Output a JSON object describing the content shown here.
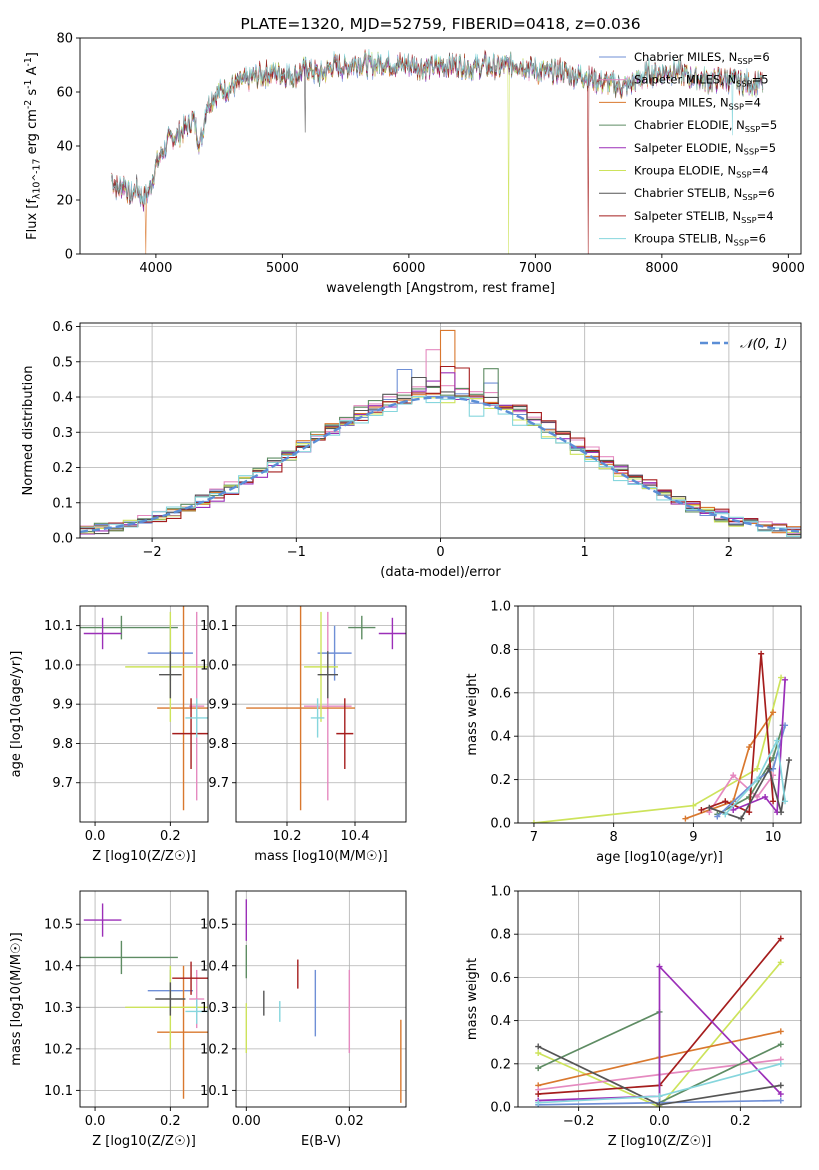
{
  "colors": {
    "Chabrier MILES": "#6f8fd6",
    "Salpeter MILES": "#e58ac0",
    "Kroupa MILES": "#d9782e",
    "Chabrier ELODIE": "#5e8c63",
    "Salpeter ELODIE": "#9b2fb8",
    "Kroupa ELODIE": "#cde35b",
    "Chabrier STELIB": "#555555",
    "Salpeter STELIB": "#a51d1d",
    "Kroupa STELIB": "#86d6dd",
    "normal": "#5b8ed6"
  },
  "chart_data": [
    {
      "id": "spectrum",
      "type": "line",
      "title": "PLATE=1320, MJD=52759, FIBERID=0418, z=0.036",
      "xlabel": "wavelength [Angstrom, rest frame]",
      "ylabel": "Flux [f_λ10^-17 erg cm^-2 s^-1 A^-1]",
      "xlim": [
        3400,
        9100
      ],
      "ylim": [
        0,
        80
      ],
      "xticks": [
        4000,
        5000,
        6000,
        7000,
        8000,
        9000
      ],
      "yticks": [
        0,
        20,
        40,
        60,
        80
      ],
      "legend_position": "top-right",
      "legend": [
        {
          "series": "Chabrier MILES",
          "label": "Chabrier MILES, N_SSP=6"
        },
        {
          "series": "Salpeter MILES",
          "label": "Salpeter MILES, N_SSP=5"
        },
        {
          "series": "Kroupa MILES",
          "label": "Kroupa MILES, N_SSP=4"
        },
        {
          "series": "Chabrier ELODIE",
          "label": "Chabrier ELODIE, N_SSP=5"
        },
        {
          "series": "Salpeter ELODIE",
          "label": "Salpeter ELODIE, N_SSP=5"
        },
        {
          "series": "Kroupa ELODIE",
          "label": "Kroupa ELODIE, N_SSP=4"
        },
        {
          "series": "Chabrier STELIB",
          "label": "Chabrier STELIB, N_SSP=6"
        },
        {
          "series": "Salpeter STELIB",
          "label": "Salpeter STELIB, N_SSP=4"
        },
        {
          "series": "Kroupa STELIB",
          "label": "Kroupa STELIB, N_SSP=6"
        }
      ],
      "continuum": {
        "x": [
          3650,
          3700,
          3750,
          3800,
          3850,
          3900,
          3950,
          4000,
          4100,
          4200,
          4300,
          4350,
          4400,
          4500,
          4600,
          4700,
          4800,
          4900,
          5000,
          5100,
          5200,
          5300,
          5400,
          5500,
          5600,
          5700,
          5800,
          5900,
          6000,
          6100,
          6200,
          6300,
          6400,
          6500,
          6600,
          6700,
          6800,
          6900,
          7000,
          7100,
          7200,
          7300,
          7400,
          7500,
          7600,
          7700,
          7800,
          7900,
          8000,
          8100,
          8200,
          8300,
          8400,
          8500,
          8600,
          8700,
          8800
        ],
        "y": [
          28,
          24,
          26,
          21,
          25,
          20,
          24,
          33,
          42,
          45,
          50,
          40,
          55,
          60,
          62,
          64,
          66,
          67,
          67,
          66,
          69,
          66,
          70,
          69,
          71,
          70,
          71,
          70,
          70,
          69,
          69,
          70,
          70,
          69,
          70,
          69,
          70,
          70,
          68,
          67,
          68,
          66,
          66,
          64,
          63,
          62,
          64,
          67,
          67,
          68,
          66,
          65,
          64,
          65,
          64,
          63,
          63
        ]
      },
      "dips": [
        {
          "series": "Kroupa MILES",
          "x": 3920,
          "y": 0
        },
        {
          "series": "Kroupa ELODIE",
          "x": 6790,
          "y": 0
        },
        {
          "series": "Salpeter STELIB",
          "x": 7420,
          "y": 0
        },
        {
          "series": "Chabrier STELIB",
          "x": 5180,
          "y": 45
        },
        {
          "series": "Kroupa STELIB",
          "x": 8560,
          "y": 44
        }
      ]
    },
    {
      "id": "residuals",
      "type": "histogram",
      "xlabel": "(data-model)/error",
      "ylabel": "Normed distribution",
      "xlim": [
        -2.5,
        2.5
      ],
      "ylim": [
        0,
        0.61
      ],
      "xticks": [
        -2,
        -1,
        0,
        1,
        2
      ],
      "yticks": [
        0.0,
        0.1,
        0.2,
        0.3,
        0.4,
        0.5,
        0.6
      ],
      "grid": true,
      "bin_width": 0.1,
      "legend_position": "top-right",
      "reference": {
        "label": "𝒩(0, 1)",
        "mu": 0,
        "sigma": 1
      },
      "series": [
        {
          "name": "Chabrier MILES",
          "offset": 0.0,
          "scale": 1.02,
          "peak_bumps": [
            [
              -0.25,
              0.08
            ],
            [
              0.35,
              0.05
            ]
          ]
        },
        {
          "name": "Salpeter MILES",
          "offset": 0.01,
          "scale": 1.06,
          "peak_bumps": [
            [
              -0.05,
              0.12
            ]
          ]
        },
        {
          "name": "Kroupa MILES",
          "offset": 0.02,
          "scale": 1.05,
          "peak_bumps": [
            [
              0.05,
              0.18
            ]
          ]
        },
        {
          "name": "Chabrier ELODIE",
          "offset": -0.01,
          "scale": 1.04,
          "peak_bumps": [
            [
              0.35,
              0.1
            ]
          ]
        },
        {
          "name": "Salpeter ELODIE",
          "offset": 0.03,
          "scale": 1.03,
          "peak_bumps": [
            [
              0.0,
              0.05
            ]
          ]
        },
        {
          "name": "Kroupa ELODIE",
          "offset": -0.02,
          "scale": 1.0,
          "peak_bumps": []
        },
        {
          "name": "Chabrier STELIB",
          "offset": 0.0,
          "scale": 1.05,
          "peak_bumps": [
            [
              -0.15,
              0.05
            ]
          ]
        },
        {
          "name": "Salpeter STELIB",
          "offset": 0.05,
          "scale": 1.04,
          "peak_bumps": [
            [
              0.1,
              0.06
            ]
          ]
        },
        {
          "name": "Kroupa STELIB",
          "offset": -0.03,
          "scale": 0.98,
          "peak_bumps": [
            [
              0.25,
              -0.04
            ]
          ]
        }
      ]
    },
    {
      "id": "age-vs-Z",
      "type": "scatter",
      "xlabel": "Z [log10(Z/Z☉)]",
      "ylabel": "age  [log10(age/yr)]",
      "xlim": [
        -0.04,
        0.3
      ],
      "ylim": [
        9.6,
        10.15
      ],
      "xticks": [
        0.0,
        0.2
      ],
      "yticks": [
        9.7,
        9.8,
        9.9,
        10.0,
        10.1
      ],
      "grid": true,
      "points": [
        {
          "series": "Chabrier MILES",
          "x": 0.2,
          "y": 10.03,
          "xerr": 0.06,
          "yerr": 0.07
        },
        {
          "series": "Salpeter MILES",
          "x": 0.27,
          "y": 9.895,
          "xerr": 0.02,
          "yerr": 0.24
        },
        {
          "series": "Kroupa MILES",
          "x": 0.235,
          "y": 9.89,
          "xerr": 0.07,
          "yerr": 0.26
        },
        {
          "series": "Chabrier ELODIE",
          "x": 0.07,
          "y": 10.095,
          "xerr": 0.15,
          "yerr": 0.03
        },
        {
          "series": "Salpeter ELODIE",
          "x": 0.02,
          "y": 10.08,
          "xerr": 0.05,
          "yerr": 0.04
        },
        {
          "series": "Kroupa ELODIE",
          "x": 0.2,
          "y": 9.995,
          "xerr": 0.12,
          "yerr": 0.14
        },
        {
          "series": "Chabrier STELIB",
          "x": 0.2,
          "y": 9.975,
          "xerr": 0.03,
          "yerr": 0.06
        },
        {
          "series": "Salpeter STELIB",
          "x": 0.255,
          "y": 9.825,
          "xerr": 0.05,
          "yerr": 0.09
        },
        {
          "series": "Kroupa STELIB",
          "x": 0.27,
          "y": 9.865,
          "xerr": 0.03,
          "yerr": 0.05
        }
      ]
    },
    {
      "id": "age-vs-mass",
      "type": "scatter",
      "xlabel": "mass [log10(M/M☉)]",
      "ylabel": "",
      "xlim": [
        10.05,
        10.55
      ],
      "ylim": [
        9.6,
        10.15
      ],
      "xticks": [
        10.2,
        10.4
      ],
      "yticks": [
        9.7,
        9.8,
        9.9,
        10.0,
        10.1
      ],
      "grid": true,
      "points": [
        {
          "series": "Chabrier MILES",
          "x": 10.34,
          "y": 10.03,
          "xerr": 0.05,
          "yerr": 0.07
        },
        {
          "series": "Salpeter MILES",
          "x": 10.32,
          "y": 9.895,
          "xerr": 0.07,
          "yerr": 0.24
        },
        {
          "series": "Kroupa MILES",
          "x": 10.24,
          "y": 9.89,
          "xerr": 0.16,
          "yerr": 0.26
        },
        {
          "series": "Chabrier ELODIE",
          "x": 10.42,
          "y": 10.095,
          "xerr": 0.04,
          "yerr": 0.03
        },
        {
          "series": "Salpeter ELODIE",
          "x": 10.51,
          "y": 10.08,
          "xerr": 0.04,
          "yerr": 0.04
        },
        {
          "series": "Kroupa ELODIE",
          "x": 10.3,
          "y": 9.995,
          "xerr": 0.05,
          "yerr": 0.14
        },
        {
          "series": "Chabrier STELIB",
          "x": 10.32,
          "y": 9.975,
          "xerr": 0.03,
          "yerr": 0.06
        },
        {
          "series": "Salpeter STELIB",
          "x": 10.37,
          "y": 9.825,
          "xerr": 0.025,
          "yerr": 0.09
        },
        {
          "series": "Kroupa STELIB",
          "x": 10.29,
          "y": 9.865,
          "xerr": 0.02,
          "yerr": 0.05
        }
      ]
    },
    {
      "id": "mass-weight-vs-age",
      "type": "line",
      "xlabel": "age  [log10(age/yr)]",
      "ylabel": "mass weight",
      "xlim": [
        6.8,
        10.35
      ],
      "ylim": [
        0,
        1.0
      ],
      "xticks": [
        7,
        8,
        9,
        10
      ],
      "yticks": [
        0.0,
        0.2,
        0.4,
        0.6,
        0.8,
        1.0
      ],
      "grid": true,
      "series": [
        {
          "name": "Kroupa ELODIE",
          "x": [
            7.0,
            9.0,
            9.8,
            10.1
          ],
          "y": [
            0.0,
            0.08,
            0.25,
            0.67
          ]
        },
        {
          "name": "Kroupa MILES",
          "x": [
            8.9,
            9.5,
            9.7,
            10.0
          ],
          "y": [
            0.02,
            0.1,
            0.35,
            0.51
          ]
        },
        {
          "name": "Salpeter MILES",
          "x": [
            9.2,
            9.5,
            9.8,
            10.0
          ],
          "y": [
            0.05,
            0.22,
            0.12,
            0.22
          ]
        },
        {
          "name": "Chabrier ELODIE",
          "x": [
            9.3,
            9.7,
            10.0,
            10.12
          ],
          "y": [
            0.04,
            0.12,
            0.3,
            0.45
          ]
        },
        {
          "name": "Salpeter STELIB",
          "x": [
            9.1,
            9.4,
            9.7,
            9.85,
            10.0
          ],
          "y": [
            0.06,
            0.1,
            0.05,
            0.78,
            0.1
          ]
        },
        {
          "name": "Chabrier MILES",
          "x": [
            9.3,
            9.8,
            10.0,
            10.15
          ],
          "y": [
            0.03,
            0.2,
            0.25,
            0.45
          ]
        },
        {
          "name": "Salpeter ELODIE",
          "x": [
            9.5,
            9.9,
            10.05,
            10.15
          ],
          "y": [
            0.06,
            0.12,
            0.05,
            0.66
          ]
        },
        {
          "name": "Chabrier STELIB",
          "x": [
            9.2,
            9.6,
            9.95,
            10.1,
            10.2
          ],
          "y": [
            0.07,
            0.02,
            0.25,
            0.05,
            0.29
          ]
        },
        {
          "name": "Kroupa STELIB",
          "x": [
            9.4,
            9.8,
            10.05,
            10.15
          ],
          "y": [
            0.04,
            0.2,
            0.38,
            0.1
          ]
        }
      ]
    },
    {
      "id": "mass-vs-Z",
      "type": "scatter",
      "xlabel": "Z [log10(Z/Z☉)]",
      "ylabel": "mass [log10(M/M☉)]",
      "xlim": [
        -0.04,
        0.3
      ],
      "ylim": [
        10.06,
        10.58
      ],
      "xticks": [
        0.0,
        0.2
      ],
      "yticks": [
        10.1,
        10.2,
        10.3,
        10.4,
        10.5
      ],
      "grid": true,
      "points": [
        {
          "series": "Chabrier MILES",
          "x": 0.2,
          "y": 10.34,
          "xerr": 0.06,
          "yerr": 0.05
        },
        {
          "series": "Salpeter MILES",
          "x": 0.27,
          "y": 10.32,
          "xerr": 0.02,
          "yerr": 0.07
        },
        {
          "series": "Kroupa MILES",
          "x": 0.235,
          "y": 10.24,
          "xerr": 0.07,
          "yerr": 0.16
        },
        {
          "series": "Chabrier ELODIE",
          "x": 0.07,
          "y": 10.42,
          "xerr": 0.15,
          "yerr": 0.04
        },
        {
          "series": "Salpeter ELODIE",
          "x": 0.02,
          "y": 10.51,
          "xerr": 0.05,
          "yerr": 0.04
        },
        {
          "series": "Kroupa ELODIE",
          "x": 0.2,
          "y": 10.3,
          "xerr": 0.12,
          "yerr": 0.1
        },
        {
          "series": "Chabrier STELIB",
          "x": 0.2,
          "y": 10.32,
          "xerr": 0.04,
          "yerr": 0.04
        },
        {
          "series": "Salpeter STELIB",
          "x": 0.255,
          "y": 10.37,
          "xerr": 0.05,
          "yerr": 0.04
        },
        {
          "series": "Kroupa STELIB",
          "x": 0.27,
          "y": 10.29,
          "xerr": 0.03,
          "yerr": 0.03
        }
      ]
    },
    {
      "id": "mass-vs-EBV",
      "type": "scatter",
      "xlabel": "E(B-V)",
      "ylabel": "",
      "xlim": [
        -0.002,
        0.031
      ],
      "ylim": [
        10.06,
        10.58
      ],
      "xticks": [
        0.0,
        0.02
      ],
      "yticks": [
        10.1,
        10.2,
        10.3,
        10.4,
        10.5
      ],
      "grid": true,
      "points": [
        {
          "series": "Chabrier MILES",
          "x": 0.0134,
          "y": 10.31,
          "yerr": 0.08
        },
        {
          "series": "Salpeter MILES",
          "x": 0.02,
          "y": 10.29,
          "yerr": 0.1
        },
        {
          "series": "Kroupa MILES",
          "x": 0.03,
          "y": 10.17,
          "yerr": 0.1
        },
        {
          "series": "Chabrier ELODIE",
          "x": 0.0,
          "y": 10.41,
          "yerr": 0.04
        },
        {
          "series": "Salpeter ELODIE",
          "x": 0.0,
          "y": 10.51,
          "yerr": 0.05
        },
        {
          "series": "Kroupa ELODIE",
          "x": 0.0,
          "y": 10.25,
          "yerr": 0.06
        },
        {
          "series": "Chabrier STELIB",
          "x": 0.0034,
          "y": 10.31,
          "yerr": 0.03
        },
        {
          "series": "Salpeter STELIB",
          "x": 0.01,
          "y": 10.38,
          "yerr": 0.035
        },
        {
          "series": "Kroupa STELIB",
          "x": 0.0065,
          "y": 10.29,
          "yerr": 0.025
        }
      ]
    },
    {
      "id": "mass-weight-vs-Z",
      "type": "line",
      "xlabel": "Z [log10(Z/Z☉)]",
      "ylabel": "mass weight",
      "xlim": [
        -0.35,
        0.35
      ],
      "ylim": [
        0,
        1.0
      ],
      "xticks": [
        -0.2,
        0.0,
        0.2
      ],
      "yticks": [
        0.0,
        0.2,
        0.4,
        0.6,
        0.8,
        1.0
      ],
      "grid": true,
      "series": [
        {
          "name": "Kroupa ELODIE",
          "x": [
            -0.3,
            0.0,
            0.3
          ],
          "y": [
            0.25,
            0.0,
            0.67
          ]
        },
        {
          "name": "Kroupa MILES",
          "x": [
            -0.3,
            0.0,
            0.3
          ],
          "y": [
            0.1,
            0.23,
            0.35
          ]
        },
        {
          "name": "Salpeter MILES",
          "x": [
            -0.3,
            0.0,
            0.3
          ],
          "y": [
            0.08,
            0.15,
            0.22
          ]
        },
        {
          "name": "Chabrier ELODIE",
          "x": [
            -0.3,
            0.0,
            0.0,
            0.3
          ],
          "y": [
            0.18,
            0.44,
            0.02,
            0.29
          ]
        },
        {
          "name": "Salpeter STELIB",
          "x": [
            -0.3,
            0.0,
            0.3
          ],
          "y": [
            0.06,
            0.1,
            0.78
          ]
        },
        {
          "name": "Chabrier MILES",
          "x": [
            -0.3,
            0.0,
            0.3
          ],
          "y": [
            0.01,
            0.02,
            0.03
          ]
        },
        {
          "name": "Salpeter ELODIE",
          "x": [
            -0.3,
            0.0,
            0.0,
            0.3
          ],
          "y": [
            0.03,
            0.05,
            0.65,
            0.06
          ]
        },
        {
          "name": "Chabrier STELIB",
          "x": [
            -0.3,
            0.0,
            0.3
          ],
          "y": [
            0.28,
            0.01,
            0.1
          ]
        },
        {
          "name": "Kroupa STELIB",
          "x": [
            -0.3,
            0.0,
            0.3
          ],
          "y": [
            0.02,
            0.05,
            0.2
          ]
        }
      ]
    }
  ]
}
